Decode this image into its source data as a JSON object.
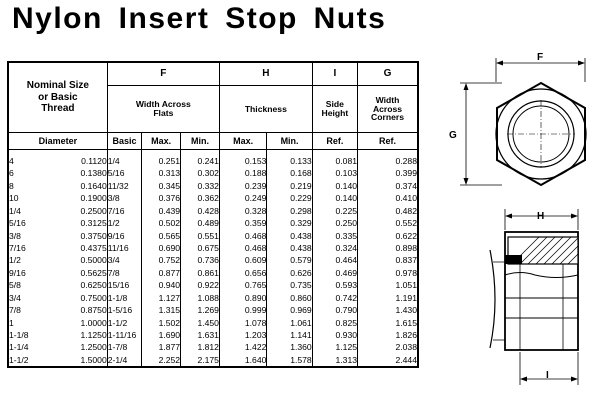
{
  "title": "Nylon Insert Stop Nuts",
  "table": {
    "section_letters": {
      "F": "F",
      "H": "H",
      "I": "I",
      "G": "G"
    },
    "col_nominal": [
      "Nominal Size",
      "or Basic",
      "Thread",
      "Diameter"
    ],
    "col_F": [
      "Width Across",
      "Flats"
    ],
    "col_H": "Thickness",
    "col_I": [
      "Side",
      "Height"
    ],
    "col_G": [
      "Width",
      "Across",
      "Corners"
    ],
    "sub": {
      "basic": "Basic",
      "max": "Max.",
      "min": "Min.",
      "ref": "Ref."
    },
    "rows": [
      [
        "4",
        "0.1120",
        "1/4",
        "0.251",
        "0.241",
        "0.153",
        "0.133",
        "0.081",
        "0.288"
      ],
      [
        "6",
        "0.1380",
        "5/16",
        "0.313",
        "0.302",
        "0.188",
        "0.168",
        "0.103",
        "0.399"
      ],
      [
        "8",
        "0.1640",
        "11/32",
        "0.345",
        "0.332",
        "0.239",
        "0.219",
        "0.140",
        "0.374"
      ],
      [
        "10",
        "0.1900",
        "3/8",
        "0.376",
        "0.362",
        "0.249",
        "0.229",
        "0.140",
        "0.410"
      ],
      [
        "1/4",
        "0.2500",
        "7/16",
        "0.439",
        "0.428",
        "0.328",
        "0.298",
        "0.225",
        "0.482"
      ],
      [
        "5/16",
        "0.3125",
        "1/2",
        "0.502",
        "0.489",
        "0.359",
        "0.329",
        "0.250",
        "0.552"
      ],
      [
        "3/8",
        "0.3750",
        "9/16",
        "0.565",
        "0.551",
        "0.468",
        "0.438",
        "0.335",
        "0.622"
      ],
      [
        "7/16",
        "0.4375",
        "11/16",
        "0.690",
        "0.675",
        "0.468",
        "0.438",
        "0.324",
        "0.898"
      ],
      [
        "1/2",
        "0.5000",
        "3/4",
        "0.752",
        "0.736",
        "0.609",
        "0.579",
        "0.464",
        "0.837"
      ],
      [
        "9/16",
        "0.5625",
        "7/8",
        "0.877",
        "0.861",
        "0.656",
        "0.626",
        "0.469",
        "0.978"
      ],
      [
        "5/8",
        "0.6250",
        "15/16",
        "0.940",
        "0.922",
        "0.765",
        "0.735",
        "0.593",
        "1.051"
      ],
      [
        "3/4",
        "0.7500",
        "1-1/8",
        "1.127",
        "1.088",
        "0.890",
        "0.860",
        "0.742",
        "1.191"
      ],
      [
        "7/8",
        "0.8750",
        "1-5/16",
        "1.315",
        "1.269",
        "0.999",
        "0.969",
        "0.790",
        "1.430"
      ],
      [
        "1",
        "1.0000",
        "1-1/2",
        "1.502",
        "1.450",
        "1.078",
        "1.061",
        "0.825",
        "1.615"
      ],
      [
        "1-1/8",
        "1.1250",
        "1-11/16",
        "1.690",
        "1.631",
        "1.203",
        "1.141",
        "0.930",
        "1.826"
      ],
      [
        "1-1/4",
        "1.2500",
        "1-7/8",
        "1.877",
        "1.812",
        "1.422",
        "1.360",
        "1.125",
        "2.038"
      ],
      [
        "1-1/2",
        "1.5000",
        "2-1/4",
        "2.252",
        "2.175",
        "1.640",
        "1.578",
        "1.313",
        "2.444"
      ]
    ]
  },
  "figure": {
    "label_F": "F",
    "label_G": "G",
    "label_H": "H",
    "label_I": "I"
  }
}
